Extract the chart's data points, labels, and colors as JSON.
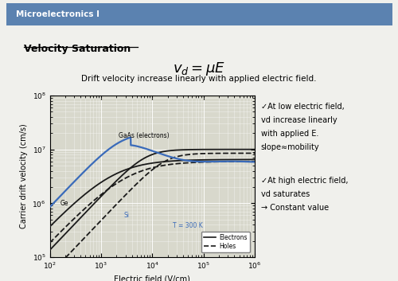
{
  "header_text": "Microelectronics I",
  "header_bg": "#5b82b0",
  "header_text_color": "white",
  "title_text": "Velocity Saturation",
  "subtitle": "Drift velocity increase linearly with applied electric field.",
  "xlabel": "Electric field (V/cm)",
  "ylabel": "Carrier drift velocity (cm/s)",
  "legend_T": "T = 300 K",
  "legend_electrons": "Electrons",
  "legend_holes": "Holes",
  "note1_line1": "✓At low electric field,",
  "note1_line2": "vd increase linearly",
  "note1_line3": "with applied E.",
  "note1_line4": "slope≈mobility",
  "note2_line1": "✓At high electric field,",
  "note2_line2": "vd saturates",
  "note2_line3": "→ Constant value",
  "bg_color": "#f0f0ec",
  "plot_bg": "#d8d8cc",
  "grid_color": "#ffffff",
  "blue_color": "#3a6bba",
  "black_color": "#1a1a1a"
}
